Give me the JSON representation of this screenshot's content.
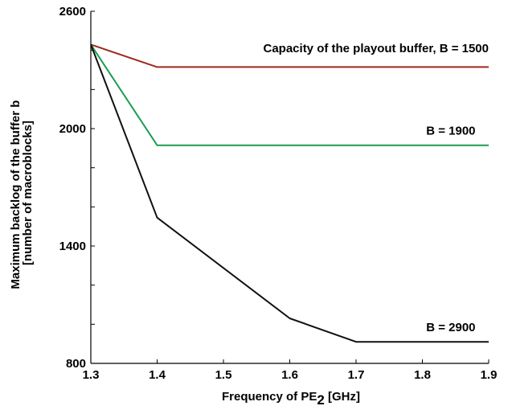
{
  "chart_data": {
    "type": "line",
    "xlabel": "Frequency of PE",
    "xlabel_sub": "2",
    "xlabel_unit": " [GHz]",
    "ylabel_line1": "Maximum backlog of the buffer b",
    "ylabel_line2": "[number of macroblocks]",
    "xlim": [
      1.3,
      1.9
    ],
    "ylim": [
      800,
      2600
    ],
    "x_ticks": [
      1.3,
      1.4,
      1.5,
      1.6,
      1.7,
      1.8,
      1.9
    ],
    "x_tick_labels": [
      "1.3",
      "1.4",
      "1.5",
      "1.6",
      "1.7",
      "1.8",
      "1.9"
    ],
    "y_ticks": [
      800,
      1400,
      2000,
      2600
    ],
    "y_tick_labels": [
      "800",
      "1400",
      "2000",
      "2600"
    ],
    "y_minor_ticks": [
      1000,
      1200,
      1600,
      1800,
      2200,
      2400
    ],
    "grid": false,
    "series": [
      {
        "label": "Capacity of the playout buffer, B = 1500",
        "color": "#9e2a1e",
        "x": [
          1.3,
          1.4,
          1.5,
          1.6,
          1.7,
          1.8,
          1.9
        ],
        "y": [
          2430,
          2315,
          2315,
          2315,
          2315,
          2315,
          2315
        ],
        "label_anchor": [
          1.9,
          2390
        ]
      },
      {
        "label": "B = 1900",
        "color": "#1a9e50",
        "x": [
          1.3,
          1.4,
          1.5,
          1.6,
          1.7,
          1.8,
          1.9
        ],
        "y": [
          2430,
          1915,
          1915,
          1915,
          1915,
          1915,
          1915
        ],
        "label_anchor": [
          1.88,
          1970
        ]
      },
      {
        "label": "B = 2900",
        "color": "#111111",
        "x": [
          1.3,
          1.4,
          1.6,
          1.7,
          1.8,
          1.9
        ],
        "y": [
          2430,
          1545,
          1030,
          910,
          910,
          910
        ],
        "label_anchor": [
          1.88,
          965
        ]
      }
    ]
  }
}
